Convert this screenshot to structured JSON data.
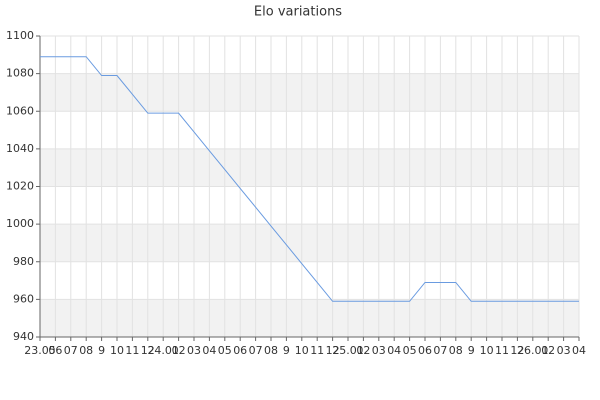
{
  "chart_data": {
    "type": "line",
    "title": "Elo variations",
    "categories": [
      "23.05",
      "06",
      "07",
      "08",
      "9",
      "10",
      "11",
      "12",
      "24.01",
      "02",
      "03",
      "04",
      "05",
      "06",
      "07",
      "08",
      "9",
      "10",
      "11",
      "12",
      "25.01",
      "02",
      "03",
      "04",
      "05",
      "06",
      "07",
      "08",
      "9",
      "10",
      "11",
      "12",
      "26.01",
      "02",
      "03",
      "04"
    ],
    "values": [
      1089,
      1089,
      1089,
      1089,
      1079,
      1079,
      1069,
      1059,
      1059,
      1059,
      1049,
      1039,
      1029,
      1019,
      1009,
      999,
      989,
      979,
      969,
      959,
      959,
      959,
      959,
      959,
      959,
      969,
      969,
      969,
      959,
      959,
      959,
      959,
      959,
      959,
      959,
      959
    ],
    "color": "#6a9be0",
    "ylim": [
      940,
      1100
    ],
    "yticks": [
      940,
      960,
      980,
      1000,
      1020,
      1040,
      1060,
      1080,
      1100
    ],
    "grid": true,
    "bands": true
  }
}
